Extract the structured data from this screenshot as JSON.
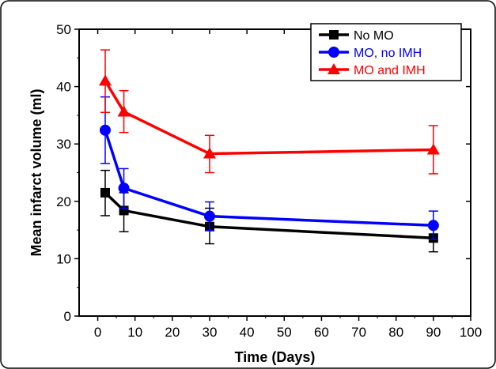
{
  "chart_data": {
    "type": "line",
    "title": "",
    "xlabel": "Time (Days)",
    "ylabel": "Mean infarct volume (ml)",
    "xlim": [
      -5,
      100
    ],
    "ylim": [
      0,
      50
    ],
    "xticks": [
      0,
      10,
      20,
      30,
      40,
      50,
      60,
      70,
      80,
      90,
      100
    ],
    "yticks": [
      0,
      10,
      20,
      30,
      40,
      50
    ],
    "grid": false,
    "legend_position": "top-right",
    "x": [
      2,
      7,
      30,
      90
    ],
    "series": [
      {
        "name": "No MO",
        "color": "#000000",
        "marker": "square",
        "values": [
          21.5,
          18.4,
          15.6,
          13.6
        ],
        "err_low": [
          17.5,
          14.7,
          12.6,
          11.2
        ],
        "err_high": [
          25.4,
          21.5,
          18.8,
          15.8
        ]
      },
      {
        "name": "MO, no IMH",
        "color": "#0000ff",
        "marker": "circle",
        "values": [
          32.4,
          22.3,
          17.4,
          15.8
        ],
        "err_low": [
          26.6,
          18.8,
          14.9,
          13.4
        ],
        "err_high": [
          38.2,
          25.7,
          19.9,
          18.3
        ]
      },
      {
        "name": "MO and IMH",
        "color": "#ff0000",
        "marker": "triangle",
        "values": [
          41.0,
          35.6,
          28.3,
          29.0
        ],
        "err_low": [
          35.5,
          32.0,
          25.0,
          24.8
        ],
        "err_high": [
          46.4,
          39.3,
          31.5,
          33.2
        ]
      }
    ]
  }
}
